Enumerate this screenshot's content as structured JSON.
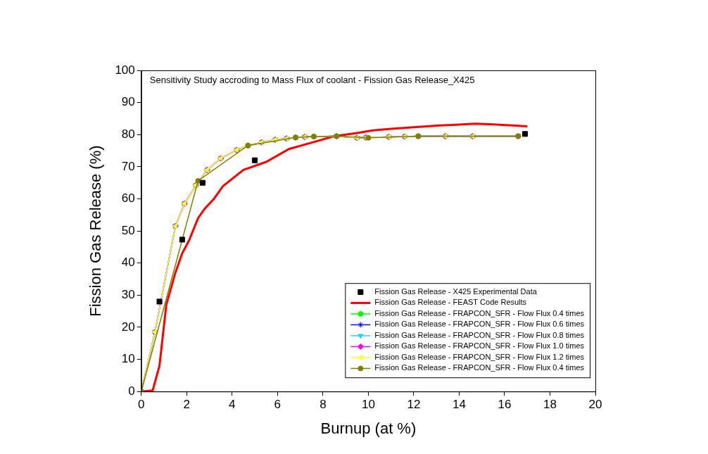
{
  "chart_data": {
    "type": "line",
    "title": "Sensitivity Study accroding to Mass Flux of coolant - Fission Gas Release_X425",
    "x_label": "Burnup (at %)",
    "y_label": "Fission Gas Release (%)",
    "xlim": [
      0,
      20
    ],
    "xticks": [
      0,
      2,
      4,
      6,
      8,
      10,
      12,
      14,
      16,
      18,
      20
    ],
    "ylim": [
      0,
      100
    ],
    "yticks": [
      0,
      10,
      20,
      30,
      40,
      50,
      60,
      70,
      80,
      90,
      100
    ],
    "grid": false,
    "legend": "lower right",
    "series": [
      {
        "name": "Fission Gas Release - X425 Experimental Data",
        "type": "scatter",
        "color": "#000000",
        "marker": "square",
        "line_style": "none",
        "x": [
          0.8,
          1.8,
          2.7,
          5.0,
          16.9
        ],
        "values": [
          28,
          47.3,
          65,
          72,
          80.2
        ]
      },
      {
        "name": "Fission Gas Release - FEAST Code Results",
        "type": "line",
        "color": "#ff0000",
        "marker": "none",
        "line_style": "solid",
        "x": [
          0,
          0.5,
          0.8,
          1.1,
          1.5,
          1.8,
          2.1,
          2.5,
          2.8,
          3.2,
          3.6,
          4.5,
          5.5,
          6.5,
          7.5,
          8.5,
          9.5,
          10.2,
          11,
          12,
          13,
          14,
          14.7,
          15.5,
          16.5,
          17
        ],
        "values": [
          0,
          0.3,
          8,
          27,
          37,
          43,
          47,
          54,
          57,
          60,
          64,
          69,
          71.5,
          75.5,
          77.5,
          79.5,
          80.5,
          81.3,
          81.8,
          82.3,
          82.8,
          83.1,
          83.4,
          83.2,
          82.8,
          82.6
        ]
      },
      {
        "name": "Fission Gas Release - FRAPCON_SFR - Flow Flux 0.4 times",
        "type": "line",
        "color": "#00ff00",
        "marker": "circle",
        "line_style": "solid",
        "x": [
          0,
          0.6,
          1.5,
          1.9,
          2.4,
          2.9,
          3.5,
          4.2,
          4.7,
          5.3,
          5.9,
          6.4,
          6.8,
          7.2,
          7.6,
          8.6,
          9.5,
          9.9,
          10.9,
          11.6,
          12.2,
          13.4,
          14.6,
          16.6
        ],
        "values": [
          0,
          18.5,
          51.5,
          58.5,
          64.2,
          69,
          72.6,
          75.2,
          76.6,
          77.6,
          78.4,
          78.8,
          79.1,
          79.3,
          79.4,
          79.5,
          79,
          79.1,
          79.3,
          79.4,
          79.5,
          79.5,
          79.5,
          79.5
        ]
      },
      {
        "name": "Fission Gas Release - FRAPCON_SFR - Flow Flux 0.6 times",
        "type": "line",
        "color": "#0000ff",
        "marker": "star",
        "line_style": "solid",
        "x": [
          0,
          0.6,
          1.5,
          1.9,
          2.4,
          2.9,
          3.5,
          4.2,
          4.7,
          5.3,
          5.9,
          6.4,
          6.8,
          7.2,
          7.6,
          8.6,
          9.5,
          9.9,
          10.9,
          11.6,
          12.2,
          13.4,
          14.6,
          16.6
        ],
        "values": [
          0,
          18.5,
          51.5,
          58.5,
          64.2,
          69,
          72.6,
          75.2,
          76.6,
          77.6,
          78.4,
          78.8,
          79.1,
          79.3,
          79.4,
          79.5,
          79,
          79.1,
          79.3,
          79.4,
          79.5,
          79.5,
          79.5,
          79.5
        ]
      },
      {
        "name": "Fission Gas Release - FRAPCON_SFR - Flow Flux 0.8 times",
        "type": "line",
        "color": "#33ccff",
        "marker": "triangle_down",
        "line_style": "solid",
        "x": [
          0,
          0.6,
          1.5,
          1.9,
          2.4,
          2.9,
          3.5,
          4.2,
          4.7,
          5.3,
          5.9,
          6.4,
          6.8,
          7.2,
          7.6,
          8.6,
          9.5,
          9.9,
          10.9,
          11.6,
          12.2,
          13.4,
          14.6,
          16.6
        ],
        "values": [
          0,
          18.5,
          51.5,
          58.5,
          64.2,
          69,
          72.6,
          75.2,
          76.6,
          77.6,
          78.4,
          78.8,
          79.1,
          79.3,
          79.4,
          79.5,
          79,
          79.1,
          79.3,
          79.4,
          79.5,
          79.5,
          79.5,
          79.5
        ]
      },
      {
        "name": "Fission Gas Release - FRAPCON_SFR - Flow Flux 1.0 times",
        "type": "line",
        "color": "#ff00ff",
        "marker": "diamond",
        "line_style": "solid",
        "x": [
          0,
          0.6,
          1.5,
          1.9,
          2.4,
          2.9,
          3.5,
          4.2,
          4.7,
          5.3,
          5.9,
          6.4,
          6.8,
          7.2,
          7.6,
          8.6,
          9.5,
          9.9,
          10.9,
          11.6,
          12.2,
          13.4,
          14.6,
          16.6
        ],
        "values": [
          0,
          18.5,
          51.5,
          58.5,
          64.2,
          69,
          72.6,
          75.2,
          76.6,
          77.6,
          78.4,
          78.8,
          79.1,
          79.3,
          79.4,
          79.5,
          79,
          79.1,
          79.3,
          79.4,
          79.5,
          79.5,
          79.5,
          79.5
        ]
      },
      {
        "name": "Fission Gas Release - FRAPCON_SFR - Flow Flux 1.2 times",
        "type": "line",
        "color": "#ffff33",
        "marker": "triangle_left",
        "line_style": "solid",
        "x": [
          0,
          0.6,
          1.5,
          1.9,
          2.4,
          2.9,
          3.5,
          4.2,
          4.7,
          5.3,
          5.9,
          6.4,
          6.8,
          7.2,
          7.6,
          8.6,
          9.5,
          9.9,
          10.9,
          11.6,
          12.2,
          13.4,
          14.6,
          16.6
        ],
        "values": [
          0,
          18.5,
          51.5,
          58.5,
          64.2,
          69,
          72.6,
          75.2,
          76.6,
          77.6,
          78.4,
          78.8,
          79.1,
          79.3,
          79.4,
          79.5,
          79,
          79.1,
          79.3,
          79.4,
          79.5,
          79.5,
          79.5,
          79.5
        ]
      },
      {
        "name": "Fission Gas Release - FRAPCON_SFR - Flow Flux 0.4 times",
        "type": "line",
        "color": "#808000",
        "marker": "circle",
        "line_style": "solid",
        "x": [
          0,
          2.5,
          4.7,
          6.8,
          7.6,
          8.6,
          10.0,
          12.2,
          16.6
        ],
        "values": [
          0,
          65.6,
          76.6,
          79.1,
          79.4,
          79.5,
          79.0,
          79.5,
          79.5
        ]
      }
    ]
  }
}
